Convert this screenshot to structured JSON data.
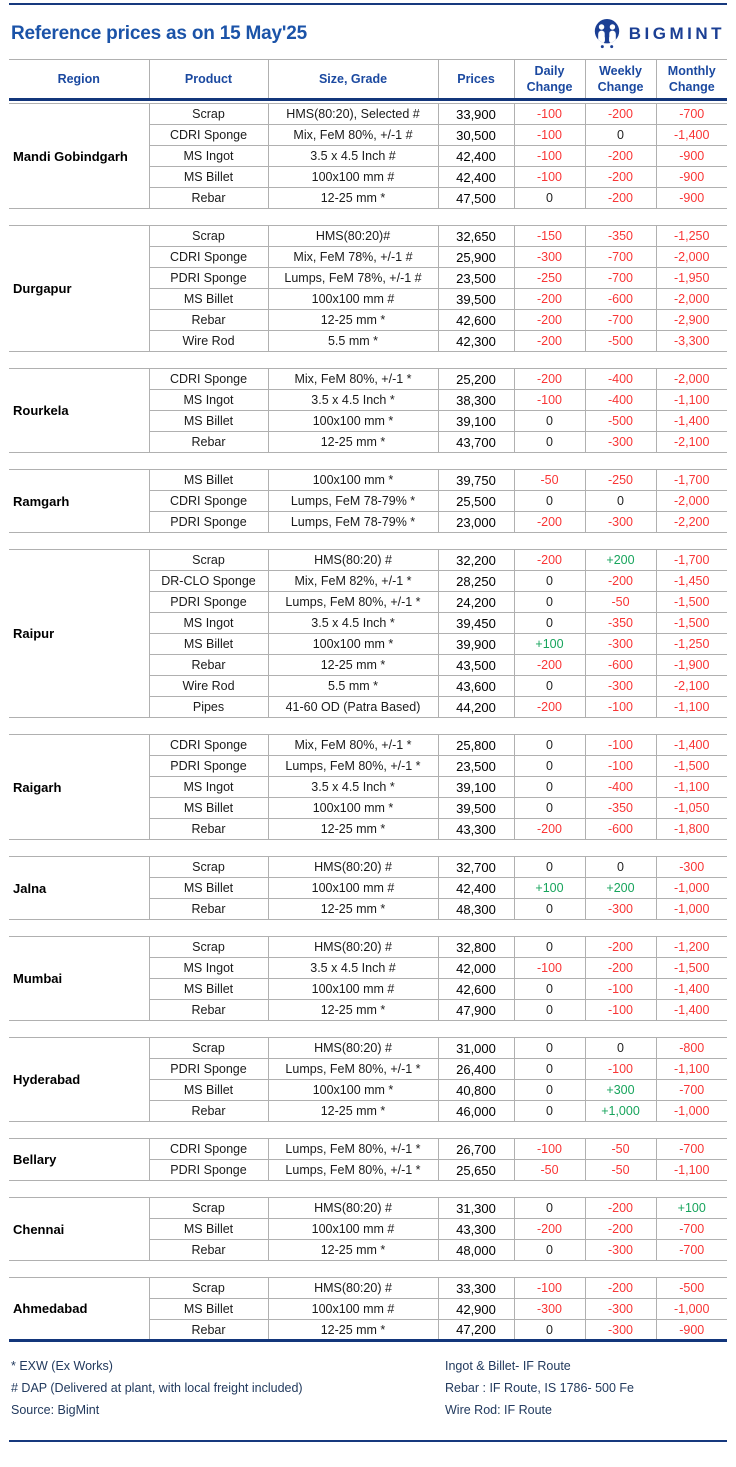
{
  "header": {
    "title": "Reference prices as on 15 May'25",
    "brand": "BIGMINT"
  },
  "columns": [
    "Region",
    "Product",
    "Size, Grade",
    "Prices",
    "Daily Change",
    "Weekly Change",
    "Monthly Change"
  ],
  "colors": {
    "accent_navy": "#16397E",
    "title_blue": "#1B53A8",
    "header_text_blue": "#1B49A0",
    "brand_navy": "#1B3F94",
    "negative_red": "#F93535",
    "positive_green": "#17A45C",
    "grid_gray": "#B0B0B0"
  },
  "sections": [
    {
      "region": "Mandi Gobindgarh",
      "rows": [
        {
          "product": "Scrap",
          "size": "HMS(80:20), Selected #",
          "price": "33,900",
          "daily": "-100",
          "weekly": "-200",
          "monthly": "-700"
        },
        {
          "product": "CDRI Sponge",
          "size": "Mix, FeM 80%, +/-1 #",
          "price": "30,500",
          "daily": "-100",
          "weekly": "0",
          "monthly": "-1,400"
        },
        {
          "product": "MS Ingot",
          "size": "3.5 x 4.5 Inch #",
          "price": "42,400",
          "daily": "-100",
          "weekly": "-200",
          "monthly": "-900"
        },
        {
          "product": "MS Billet",
          "size": "100x100 mm #",
          "price": "42,400",
          "daily": "-100",
          "weekly": "-200",
          "monthly": "-900"
        },
        {
          "product": "Rebar",
          "size": "12-25 mm *",
          "price": "47,500",
          "daily": "0",
          "weekly": "-200",
          "monthly": "-900"
        }
      ]
    },
    {
      "region": "Durgapur",
      "rows": [
        {
          "product": "Scrap",
          "size": "HMS(80:20)#",
          "price": "32,650",
          "daily": "-150",
          "weekly": "-350",
          "monthly": "-1,250"
        },
        {
          "product": "CDRI Sponge",
          "size": "Mix, FeM 78%, +/-1 #",
          "price": "25,900",
          "daily": "-300",
          "weekly": "-700",
          "monthly": "-2,000"
        },
        {
          "product": "PDRI Sponge",
          "size": "Lumps, FeM 78%, +/-1 #",
          "price": "23,500",
          "daily": "-250",
          "weekly": "-700",
          "monthly": "-1,950"
        },
        {
          "product": "MS Billet",
          "size": "100x100 mm #",
          "price": "39,500",
          "daily": "-200",
          "weekly": "-600",
          "monthly": "-2,000"
        },
        {
          "product": "Rebar",
          "size": "12-25 mm *",
          "price": "42,600",
          "daily": "-200",
          "weekly": "-700",
          "monthly": "-2,900"
        },
        {
          "product": "Wire Rod",
          "size": "5.5 mm *",
          "price": "42,300",
          "daily": "-200",
          "weekly": "-500",
          "monthly": "-3,300"
        }
      ]
    },
    {
      "region": "Rourkela",
      "rows": [
        {
          "product": "CDRI Sponge",
          "size": "Mix, FeM 80%, +/-1 *",
          "price": "25,200",
          "daily": "-200",
          "weekly": "-400",
          "monthly": "-2,000"
        },
        {
          "product": "MS Ingot",
          "size": "3.5 x 4.5 Inch *",
          "price": "38,300",
          "daily": "-100",
          "weekly": "-400",
          "monthly": "-1,100"
        },
        {
          "product": "MS Billet",
          "size": "100x100 mm *",
          "price": "39,100",
          "daily": "0",
          "weekly": "-500",
          "monthly": "-1,400"
        },
        {
          "product": "Rebar",
          "size": "12-25 mm *",
          "price": "43,700",
          "daily": "0",
          "weekly": "-300",
          "monthly": "-2,100"
        }
      ]
    },
    {
      "region": "Ramgarh",
      "rows": [
        {
          "product": "MS Billet",
          "size": "100x100 mm *",
          "price": "39,750",
          "daily": "-50",
          "weekly": "-250",
          "monthly": "-1,700"
        },
        {
          "product": "CDRI Sponge",
          "size": "Lumps, FeM 78-79% *",
          "price": "25,500",
          "daily": "0",
          "weekly": "0",
          "monthly": "-2,000"
        },
        {
          "product": "PDRI Sponge",
          "size": "Lumps, FeM 78-79% *",
          "price": "23,000",
          "daily": "-200",
          "weekly": "-300",
          "monthly": "-2,200"
        }
      ]
    },
    {
      "region": "Raipur",
      "rows": [
        {
          "product": "Scrap",
          "size": "HMS(80:20) #",
          "price": "32,200",
          "daily": "-200",
          "weekly": "+200",
          "monthly": "-1,700"
        },
        {
          "product": "DR-CLO Sponge",
          "size": "Mix, FeM 82%, +/-1 *",
          "price": "28,250",
          "daily": "0",
          "weekly": "-200",
          "monthly": "-1,450"
        },
        {
          "product": "PDRI Sponge",
          "size": "Lumps, FeM 80%, +/-1 *",
          "price": "24,200",
          "daily": "0",
          "weekly": "-50",
          "monthly": "-1,500"
        },
        {
          "product": "MS Ingot",
          "size": "3.5 x 4.5 Inch *",
          "price": "39,450",
          "daily": "0",
          "weekly": "-350",
          "monthly": "-1,500"
        },
        {
          "product": "MS Billet",
          "size": "100x100 mm *",
          "price": "39,900",
          "daily": "+100",
          "weekly": "-300",
          "monthly": "-1,250"
        },
        {
          "product": "Rebar",
          "size": "12-25 mm *",
          "price": "43,500",
          "daily": "-200",
          "weekly": "-600",
          "monthly": "-1,900"
        },
        {
          "product": "Wire Rod",
          "size": "5.5 mm *",
          "price": "43,600",
          "daily": "0",
          "weekly": "-300",
          "monthly": "-2,100"
        },
        {
          "product": "Pipes",
          "size": "41-60 OD (Patra Based)",
          "price": "44,200",
          "daily": "-200",
          "weekly": "-100",
          "monthly": "-1,100"
        }
      ]
    },
    {
      "region": "Raigarh",
      "rows": [
        {
          "product": "CDRI Sponge",
          "size": "Mix, FeM 80%, +/-1 *",
          "price": "25,800",
          "daily": "0",
          "weekly": "-100",
          "monthly": "-1,400"
        },
        {
          "product": "PDRI Sponge",
          "size": "Lumps, FeM 80%, +/-1 *",
          "price": "23,500",
          "daily": "0",
          "weekly": "-100",
          "monthly": "-1,500"
        },
        {
          "product": "MS Ingot",
          "size": "3.5 x 4.5 Inch *",
          "price": "39,100",
          "daily": "0",
          "weekly": "-400",
          "monthly": "-1,100"
        },
        {
          "product": "MS Billet",
          "size": "100x100 mm *",
          "price": "39,500",
          "daily": "0",
          "weekly": "-350",
          "monthly": "-1,050"
        },
        {
          "product": "Rebar",
          "size": "12-25 mm *",
          "price": "43,300",
          "daily": "-200",
          "weekly": "-600",
          "monthly": "-1,800"
        }
      ]
    },
    {
      "region": "Jalna",
      "rows": [
        {
          "product": "Scrap",
          "size": "HMS(80:20) #",
          "price": "32,700",
          "daily": "0",
          "weekly": "0",
          "monthly": "-300"
        },
        {
          "product": "MS Billet",
          "size": "100x100 mm #",
          "price": "42,400",
          "daily": "+100",
          "weekly": "+200",
          "monthly": "-1,000"
        },
        {
          "product": "Rebar",
          "size": "12-25 mm *",
          "price": "48,300",
          "daily": "0",
          "weekly": "-300",
          "monthly": "-1,000"
        }
      ]
    },
    {
      "region": "Mumbai",
      "rows": [
        {
          "product": "Scrap",
          "size": "HMS(80:20) #",
          "price": "32,800",
          "daily": "0",
          "weekly": "-200",
          "monthly": "-1,200"
        },
        {
          "product": "MS Ingot",
          "size": "3.5 x 4.5 Inch #",
          "price": "42,000",
          "daily": "-100",
          "weekly": "-200",
          "monthly": "-1,500"
        },
        {
          "product": "MS Billet",
          "size": "100x100 mm #",
          "price": "42,600",
          "daily": "0",
          "weekly": "-100",
          "monthly": "-1,400"
        },
        {
          "product": "Rebar",
          "size": "12-25 mm *",
          "price": "47,900",
          "daily": "0",
          "weekly": "-100",
          "monthly": "-1,400"
        }
      ]
    },
    {
      "region": "Hyderabad",
      "rows": [
        {
          "product": "Scrap",
          "size": "HMS(80:20) #",
          "price": "31,000",
          "daily": "0",
          "weekly": "0",
          "monthly": "-800"
        },
        {
          "product": "PDRI Sponge",
          "size": "Lumps, FeM 80%, +/-1 *",
          "price": "26,400",
          "daily": "0",
          "weekly": "-100",
          "monthly": "-1,100"
        },
        {
          "product": "MS Billet",
          "size": "100x100 mm *",
          "price": "40,800",
          "daily": "0",
          "weekly": "+300",
          "monthly": "-700"
        },
        {
          "product": "Rebar",
          "size": "12-25 mm *",
          "price": "46,000",
          "daily": "0",
          "weekly": "+1,000",
          "monthly": "-1,000"
        }
      ]
    },
    {
      "region": "Bellary",
      "rows": [
        {
          "product": "CDRI Sponge",
          "size": "Lumps, FeM 80%, +/-1 *",
          "price": "26,700",
          "daily": "-100",
          "weekly": "-50",
          "monthly": "-700"
        },
        {
          "product": "PDRI Sponge",
          "size": "Lumps, FeM 80%, +/-1 *",
          "price": "25,650",
          "daily": "-50",
          "weekly": "-50",
          "monthly": "-1,100"
        }
      ]
    },
    {
      "region": "Chennai",
      "rows": [
        {
          "product": "Scrap",
          "size": "HMS(80:20) #",
          "price": "31,300",
          "daily": "0",
          "weekly": "-200",
          "monthly": "+100"
        },
        {
          "product": "MS Billet",
          "size": "100x100 mm #",
          "price": "43,300",
          "daily": "-200",
          "weekly": "-200",
          "monthly": "-700"
        },
        {
          "product": "Rebar",
          "size": "12-25 mm *",
          "price": "48,000",
          "daily": "0",
          "weekly": "-300",
          "monthly": "-700"
        }
      ]
    },
    {
      "region": "Ahmedabad",
      "rows": [
        {
          "product": "Scrap",
          "size": "HMS(80:20) #",
          "price": "33,300",
          "daily": "-100",
          "weekly": "-200",
          "monthly": "-500"
        },
        {
          "product": "MS Billet",
          "size": "100x100 mm #",
          "price": "42,900",
          "daily": "-300",
          "weekly": "-300",
          "monthly": "-1,000"
        },
        {
          "product": "Rebar",
          "size": "12-25 mm *",
          "price": "47,200",
          "daily": "0",
          "weekly": "-300",
          "monthly": "-900"
        }
      ]
    }
  ],
  "footnotes": {
    "left": [
      "* EXW (Ex Works)",
      "# DAP (Delivered at plant, with local freight included)",
      "Source: BigMint"
    ],
    "right": [
      "Ingot & Billet- IF Route",
      "Rebar : IF Route, IS 1786- 500 Fe",
      "Wire Rod: IF Route"
    ]
  }
}
